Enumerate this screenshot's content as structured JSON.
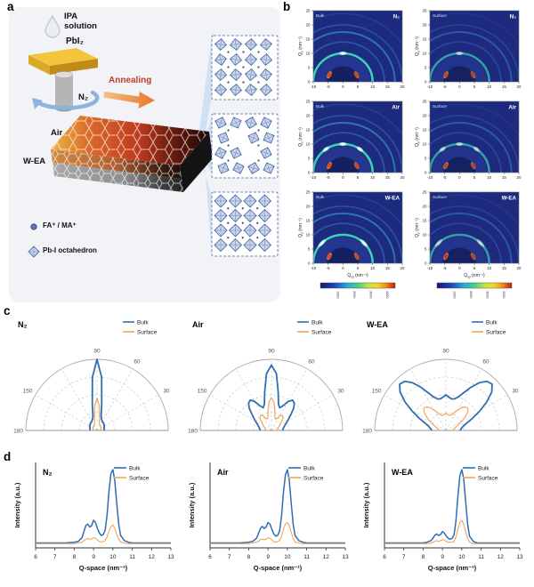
{
  "figure": {
    "letters": {
      "a": "a",
      "b": "b",
      "c": "c",
      "d": "d"
    },
    "background": "#ffffff"
  },
  "panel_a": {
    "ipa_line1": "IPA",
    "ipa_line2": "solution",
    "pbi2_label": "PbI₂",
    "annealing_label": "Annealing",
    "layer_labels": [
      "N₂",
      "Air",
      "W-EA"
    ],
    "legend": [
      {
        "icon": "cation-dot-icon",
        "label": "FA⁺ / MA⁺"
      },
      {
        "icon": "octahedron-icon",
        "label": "Pb-I octahedron"
      }
    ],
    "colors": {
      "annealing_text": "#bf3a2b",
      "pbi2_top": "#f3c53d",
      "rotation_arrow": "#8cb4df",
      "beam": "#cfdff4"
    }
  },
  "panel_b": {
    "col_positions": [
      "Bulk",
      "Surface"
    ],
    "row_conditions": [
      "N₂",
      "Air",
      "W-EA"
    ],
    "x_ticks": [
      -10,
      -5,
      0,
      5,
      10,
      15,
      20
    ],
    "y_ticks": [
      0,
      5,
      10,
      15,
      20,
      25
    ],
    "x_range": [
      -10,
      20
    ],
    "y_range": [
      0,
      25
    ],
    "x_label_main": "Q",
    "x_label_sub": "xy",
    "x_label_unit": " (nm⁻¹)",
    "y_label_main": "Q",
    "y_label_sub": "z",
    "y_label_unit": " (nm⁻¹)",
    "colorbar_ticks": [
      "1000",
      "2000",
      "3000",
      "4000"
    ]
  },
  "panel_c": {
    "titles": [
      "N₂",
      "Air",
      "W-EA"
    ],
    "legend": [
      "Bulk",
      "Surface"
    ],
    "series_colors": [
      "#2f6eb4",
      "#f2a45c"
    ],
    "angle_labels": [
      30,
      60,
      90,
      150,
      180
    ]
  },
  "panel_d": {
    "titles": [
      "N₂",
      "Air",
      "W-EA"
    ],
    "legend": [
      "Bulk",
      "Surface"
    ],
    "series_colors": [
      "#2f6eb4",
      "#f2a45c"
    ],
    "xlabel": "Q-space (nm⁻¹)",
    "ylabel": "Intensity (a.u.)",
    "x_ticks": [
      6,
      7,
      8,
      9,
      10,
      11,
      12,
      13
    ],
    "x_range": [
      6,
      13
    ]
  },
  "chart_data": [
    {
      "type": "heatmap",
      "panel": "b",
      "position": "Bulk",
      "condition": "N₂",
      "x_label": "Qxy (nm⁻¹)",
      "y_label": "Qz (nm⁻¹)",
      "x_range": [
        -10,
        20
      ],
      "y_range": [
        0,
        25
      ],
      "rings_q": [
        10,
        14,
        17.5,
        20,
        24
      ],
      "bright_ring_q": 10,
      "bright_angles_deg": [
        90
      ],
      "hot_spots": [
        {
          "q": 5.2,
          "angle_deg": 152
        },
        {
          "q": 5.2,
          "angle_deg": 28
        }
      ]
    },
    {
      "type": "heatmap",
      "panel": "b",
      "position": "Surface",
      "condition": "N₂",
      "x_label": "Qxy (nm⁻¹)",
      "y_label": "Qz (nm⁻¹)",
      "x_range": [
        -10,
        20
      ],
      "y_range": [
        0,
        25
      ],
      "rings_q": [
        10,
        14,
        17.5,
        20,
        24
      ],
      "bright_ring_q": 10,
      "bright_angles_deg": [
        90
      ],
      "hot_spots": [
        {
          "q": 5.2,
          "angle_deg": 152
        },
        {
          "q": 5.2,
          "angle_deg": 28
        }
      ]
    },
    {
      "type": "heatmap",
      "panel": "b",
      "position": "Bulk",
      "condition": "Air",
      "x_label": "Qxy (nm⁻¹)",
      "y_label": "Qz (nm⁻¹)",
      "x_range": [
        -10,
        20
      ],
      "y_range": [
        0,
        25
      ],
      "rings_q": [
        10,
        14,
        17.5,
        20,
        24
      ],
      "bright_ring_q": 10,
      "bright_angles_deg": [
        55,
        90,
        125
      ],
      "hot_spots": [
        {
          "q": 5.2,
          "angle_deg": 152
        },
        {
          "q": 5.2,
          "angle_deg": 28
        }
      ]
    },
    {
      "type": "heatmap",
      "panel": "b",
      "position": "Surface",
      "condition": "Air",
      "x_label": "Qxy (nm⁻¹)",
      "y_label": "Qz (nm⁻¹)",
      "x_range": [
        -10,
        20
      ],
      "y_range": [
        0,
        25
      ],
      "rings_q": [
        10,
        14,
        17.5,
        20,
        24
      ],
      "bright_ring_q": 10,
      "bright_angles_deg": [
        55,
        90,
        125
      ],
      "hot_spots": [
        {
          "q": 5.2,
          "angle_deg": 152
        },
        {
          "q": 5.2,
          "angle_deg": 28
        }
      ]
    },
    {
      "type": "heatmap",
      "panel": "b",
      "position": "Bulk",
      "condition": "W-EA",
      "x_label": "Qxy (nm⁻¹)",
      "y_label": "Qz (nm⁻¹)",
      "x_range": [
        -10,
        20
      ],
      "y_range": [
        0,
        25
      ],
      "rings_q": [
        10,
        14,
        17.5,
        20,
        24
      ],
      "bright_ring_q": 10,
      "bright_angles_deg": [
        45,
        135
      ],
      "hot_spots": [
        {
          "q": 5.2,
          "angle_deg": 152
        },
        {
          "q": 5.2,
          "angle_deg": 28
        }
      ]
    },
    {
      "type": "heatmap",
      "panel": "b",
      "position": "Surface",
      "condition": "W-EA",
      "x_label": "Qxy (nm⁻¹)",
      "y_label": "Qz (nm⁻¹)",
      "x_range": [
        -10,
        20
      ],
      "y_range": [
        0,
        25
      ],
      "rings_q": [
        10,
        14,
        17.5,
        20,
        24
      ],
      "bright_ring_q": 10,
      "bright_angles_deg": [
        45,
        135
      ],
      "hot_spots": [
        {
          "q": 5.2,
          "angle_deg": 152
        },
        {
          "q": 5.2,
          "angle_deg": 28
        }
      ]
    },
    {
      "type": "line",
      "subtype": "polar",
      "panel": "c",
      "condition": "N₂",
      "r_normalized": true,
      "angle_deg": [
        0,
        5,
        10,
        15,
        20,
        25,
        30,
        35,
        40,
        45,
        50,
        55,
        60,
        65,
        70,
        75,
        80,
        85,
        90,
        95,
        100,
        105,
        110,
        115,
        120,
        125,
        130,
        135,
        140,
        145,
        150,
        155,
        160,
        165,
        170,
        175,
        180
      ],
      "series": [
        {
          "name": "Bulk",
          "r": [
            0.1,
            0.1,
            0.1,
            0.1,
            0.11,
            0.11,
            0.12,
            0.12,
            0.13,
            0.13,
            0.14,
            0.14,
            0.15,
            0.16,
            0.18,
            0.22,
            0.38,
            0.75,
            1.0,
            0.75,
            0.38,
            0.22,
            0.18,
            0.16,
            0.15,
            0.14,
            0.14,
            0.13,
            0.13,
            0.12,
            0.12,
            0.11,
            0.11,
            0.1,
            0.1,
            0.1,
            0.1
          ]
        },
        {
          "name": "Surface",
          "r": [
            0.05,
            0.05,
            0.05,
            0.05,
            0.06,
            0.06,
            0.06,
            0.07,
            0.07,
            0.07,
            0.08,
            0.08,
            0.08,
            0.09,
            0.1,
            0.13,
            0.2,
            0.36,
            0.45,
            0.36,
            0.2,
            0.13,
            0.1,
            0.09,
            0.08,
            0.08,
            0.08,
            0.07,
            0.07,
            0.07,
            0.06,
            0.06,
            0.06,
            0.05,
            0.05,
            0.05,
            0.05
          ]
        }
      ]
    },
    {
      "type": "line",
      "subtype": "polar",
      "panel": "c",
      "condition": "Air",
      "r_normalized": true,
      "angle_deg": [
        0,
        5,
        10,
        15,
        20,
        25,
        30,
        35,
        40,
        45,
        50,
        55,
        60,
        65,
        70,
        75,
        80,
        85,
        90,
        95,
        100,
        105,
        110,
        115,
        120,
        125,
        130,
        135,
        140,
        145,
        150,
        155,
        160,
        165,
        170,
        175,
        180
      ],
      "series": [
        {
          "name": "Bulk",
          "r": [
            0.16,
            0.16,
            0.17,
            0.18,
            0.2,
            0.22,
            0.26,
            0.3,
            0.36,
            0.44,
            0.5,
            0.52,
            0.47,
            0.38,
            0.34,
            0.38,
            0.55,
            0.8,
            0.92,
            0.8,
            0.55,
            0.38,
            0.34,
            0.38,
            0.47,
            0.52,
            0.5,
            0.44,
            0.36,
            0.3,
            0.26,
            0.22,
            0.2,
            0.18,
            0.17,
            0.16,
            0.16
          ]
        },
        {
          "name": "Surface",
          "r": [
            0.08,
            0.08,
            0.09,
            0.09,
            0.1,
            0.11,
            0.13,
            0.15,
            0.18,
            0.22,
            0.25,
            0.26,
            0.24,
            0.19,
            0.17,
            0.19,
            0.28,
            0.4,
            0.46,
            0.4,
            0.28,
            0.19,
            0.17,
            0.19,
            0.24,
            0.26,
            0.25,
            0.22,
            0.18,
            0.15,
            0.13,
            0.11,
            0.1,
            0.09,
            0.09,
            0.08,
            0.08
          ]
        }
      ]
    },
    {
      "type": "line",
      "subtype": "polar",
      "panel": "c",
      "condition": "W-EA",
      "r_normalized": true,
      "angle_deg": [
        0,
        5,
        10,
        15,
        20,
        25,
        30,
        35,
        40,
        45,
        50,
        55,
        60,
        65,
        70,
        75,
        80,
        85,
        90,
        95,
        100,
        105,
        110,
        115,
        120,
        125,
        130,
        135,
        140,
        145,
        150,
        155,
        160,
        165,
        170,
        175,
        180
      ],
      "series": [
        {
          "name": "Bulk",
          "r": [
            0.2,
            0.21,
            0.23,
            0.26,
            0.32,
            0.42,
            0.55,
            0.7,
            0.84,
            0.92,
            0.9,
            0.82,
            0.7,
            0.58,
            0.5,
            0.46,
            0.45,
            0.47,
            0.5,
            0.47,
            0.45,
            0.46,
            0.5,
            0.58,
            0.7,
            0.82,
            0.9,
            0.92,
            0.84,
            0.7,
            0.55,
            0.42,
            0.32,
            0.26,
            0.23,
            0.21,
            0.2
          ]
        },
        {
          "name": "Surface",
          "r": [
            0.1,
            0.1,
            0.11,
            0.13,
            0.16,
            0.2,
            0.26,
            0.33,
            0.4,
            0.44,
            0.43,
            0.39,
            0.33,
            0.28,
            0.24,
            0.22,
            0.22,
            0.23,
            0.24,
            0.23,
            0.22,
            0.22,
            0.24,
            0.28,
            0.33,
            0.39,
            0.43,
            0.44,
            0.4,
            0.33,
            0.26,
            0.2,
            0.16,
            0.13,
            0.11,
            0.1,
            0.1
          ]
        }
      ]
    },
    {
      "type": "line",
      "panel": "d",
      "condition": "N₂",
      "xlabel": "Q-space (nm⁻¹)",
      "ylabel": "Intensity (a.u.)",
      "x": [
        6.0,
        6.5,
        7.0,
        7.5,
        8.0,
        8.2,
        8.4,
        8.5,
        8.6,
        8.7,
        8.8,
        8.9,
        9.0,
        9.1,
        9.2,
        9.3,
        9.4,
        9.5,
        9.6,
        9.7,
        9.8,
        9.9,
        10.0,
        10.1,
        10.2,
        10.3,
        10.4,
        10.6,
        10.8,
        11.0,
        11.5,
        12.0,
        12.5,
        13.0
      ],
      "series": [
        {
          "name": "Bulk",
          "y": [
            0.03,
            0.03,
            0.03,
            0.03,
            0.04,
            0.05,
            0.1,
            0.18,
            0.26,
            0.28,
            0.24,
            0.26,
            0.33,
            0.3,
            0.22,
            0.16,
            0.13,
            0.14,
            0.2,
            0.4,
            0.72,
            0.95,
            1.0,
            0.85,
            0.55,
            0.28,
            0.13,
            0.06,
            0.04,
            0.03,
            0.03,
            0.03,
            0.03,
            0.03
          ]
        },
        {
          "name": "Surface",
          "y": [
            0.02,
            0.02,
            0.02,
            0.02,
            0.02,
            0.03,
            0.04,
            0.06,
            0.08,
            0.09,
            0.08,
            0.08,
            0.1,
            0.09,
            0.07,
            0.05,
            0.04,
            0.05,
            0.06,
            0.11,
            0.19,
            0.25,
            0.27,
            0.22,
            0.14,
            0.08,
            0.04,
            0.03,
            0.02,
            0.02,
            0.02,
            0.02,
            0.02,
            0.02
          ]
        }
      ]
    },
    {
      "type": "line",
      "panel": "d",
      "condition": "Air",
      "xlabel": "Q-space (nm⁻¹)",
      "ylabel": "Intensity (a.u.)",
      "x": [
        6.0,
        6.5,
        7.0,
        7.5,
        8.0,
        8.2,
        8.4,
        8.5,
        8.6,
        8.7,
        8.8,
        8.9,
        9.0,
        9.1,
        9.2,
        9.3,
        9.4,
        9.5,
        9.6,
        9.7,
        9.8,
        9.9,
        10.0,
        10.1,
        10.2,
        10.3,
        10.4,
        10.6,
        10.8,
        11.0,
        11.5,
        12.0,
        12.5,
        13.0
      ],
      "series": [
        {
          "name": "Bulk",
          "y": [
            0.03,
            0.03,
            0.03,
            0.03,
            0.04,
            0.05,
            0.09,
            0.15,
            0.22,
            0.25,
            0.22,
            0.24,
            0.3,
            0.28,
            0.21,
            0.15,
            0.12,
            0.13,
            0.19,
            0.38,
            0.7,
            0.93,
            1.0,
            0.86,
            0.56,
            0.28,
            0.13,
            0.06,
            0.04,
            0.03,
            0.03,
            0.03,
            0.03,
            0.03
          ]
        },
        {
          "name": "Surface",
          "y": [
            0.02,
            0.02,
            0.02,
            0.02,
            0.02,
            0.03,
            0.04,
            0.05,
            0.07,
            0.08,
            0.07,
            0.08,
            0.1,
            0.09,
            0.07,
            0.05,
            0.04,
            0.05,
            0.06,
            0.12,
            0.21,
            0.28,
            0.3,
            0.26,
            0.17,
            0.09,
            0.04,
            0.03,
            0.02,
            0.02,
            0.02,
            0.02,
            0.02,
            0.02
          ]
        }
      ]
    },
    {
      "type": "line",
      "panel": "d",
      "condition": "W-EA",
      "xlabel": "Q-space (nm⁻¹)",
      "ylabel": "Intensity (a.u.)",
      "x": [
        6.0,
        6.5,
        7.0,
        7.5,
        8.0,
        8.2,
        8.4,
        8.5,
        8.6,
        8.7,
        8.8,
        8.9,
        9.0,
        9.1,
        9.2,
        9.3,
        9.4,
        9.5,
        9.6,
        9.7,
        9.8,
        9.9,
        10.0,
        10.1,
        10.2,
        10.3,
        10.4,
        10.6,
        10.8,
        11.0,
        11.5,
        12.0,
        12.5,
        13.0
      ],
      "series": [
        {
          "name": "Bulk",
          "y": [
            0.03,
            0.03,
            0.03,
            0.03,
            0.03,
            0.04,
            0.06,
            0.09,
            0.13,
            0.15,
            0.13,
            0.14,
            0.18,
            0.16,
            0.12,
            0.09,
            0.08,
            0.09,
            0.14,
            0.32,
            0.65,
            0.92,
            1.0,
            0.88,
            0.58,
            0.28,
            0.12,
            0.05,
            0.03,
            0.03,
            0.03,
            0.03,
            0.03,
            0.03
          ]
        },
        {
          "name": "Surface",
          "y": [
            0.02,
            0.02,
            0.02,
            0.02,
            0.02,
            0.02,
            0.03,
            0.04,
            0.05,
            0.06,
            0.05,
            0.06,
            0.07,
            0.07,
            0.05,
            0.04,
            0.04,
            0.04,
            0.05,
            0.11,
            0.21,
            0.3,
            0.33,
            0.28,
            0.18,
            0.09,
            0.04,
            0.02,
            0.02,
            0.02,
            0.02,
            0.02,
            0.02,
            0.02
          ]
        }
      ]
    }
  ]
}
